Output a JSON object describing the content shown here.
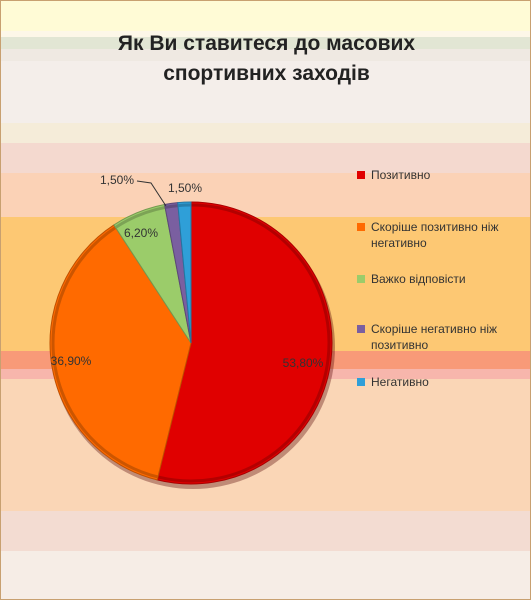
{
  "chart_data": {
    "type": "pie",
    "title_lines": [
      "Як Ви ставитеся до масових",
      "спортивних заходів"
    ],
    "legend_position": "right",
    "slices": [
      {
        "name": "Позитивно",
        "value": 53.8,
        "label": "53,80%",
        "color": "#e00000"
      },
      {
        "name": "Скоріше позитивно ніж негативно",
        "value": 36.9,
        "label": "36,90%",
        "color": "#ff6a00"
      },
      {
        "name": "Важко відповісти",
        "value": 6.2,
        "label": "6,20%",
        "color": "#9bcc6a"
      },
      {
        "name": "Скоріше негативно ніж позитивно",
        "value": 1.5,
        "label": "1,50%",
        "color": "#7a5fa0"
      },
      {
        "name": "Негативно",
        "value": 1.5,
        "label": "1,50%",
        "color": "#2f9fd8"
      }
    ]
  }
}
